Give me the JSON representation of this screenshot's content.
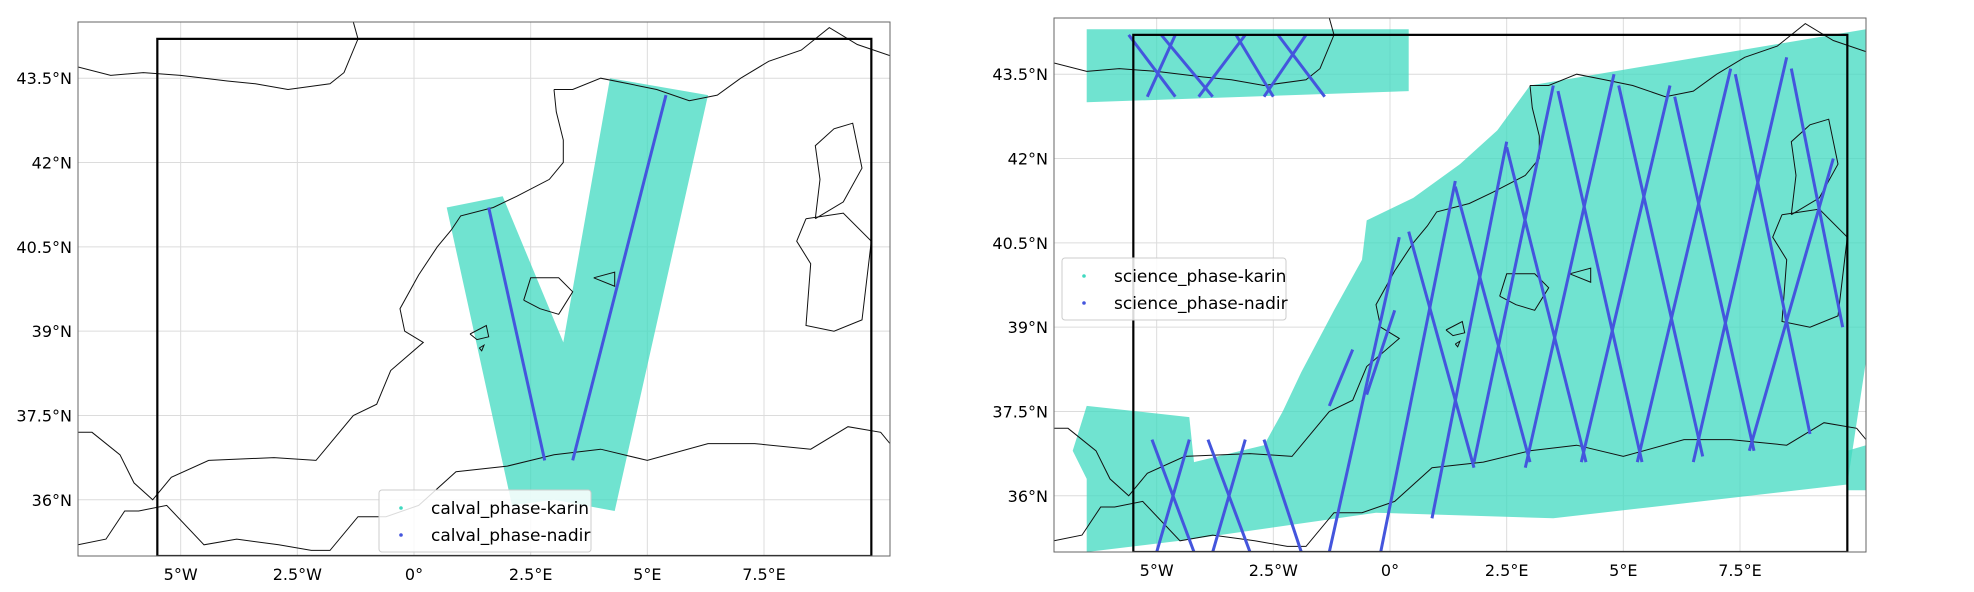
{
  "maps": [
    {
      "id": "calval",
      "lon_range": [
        -7.2,
        10.2
      ],
      "lat_range": [
        35.0,
        44.5
      ],
      "box": {
        "lon": [
          -5.5,
          9.8
        ],
        "lat": [
          35.0,
          44.2
        ]
      },
      "xticks": [
        {
          "value": -5,
          "label": "5°W"
        },
        {
          "value": -2.5,
          "label": "2.5°W"
        },
        {
          "value": 0,
          "label": "0°"
        },
        {
          "value": 2.5,
          "label": "2.5°E"
        },
        {
          "value": 5,
          "label": "5°E"
        },
        {
          "value": 7.5,
          "label": "7.5°E"
        }
      ],
      "yticks": [
        {
          "value": 43.5,
          "label": "43.5°N"
        },
        {
          "value": 42,
          "label": "42°N"
        },
        {
          "value": 40.5,
          "label": "40.5°N"
        },
        {
          "value": 39,
          "label": "39°N"
        },
        {
          "value": 37.5,
          "label": "37.5°N"
        },
        {
          "value": 36,
          "label": "36°N"
        }
      ],
      "karin_polygons": [
        [
          [
            0.7,
            41.2
          ],
          [
            1.9,
            41.4
          ],
          [
            3.2,
            38.8
          ],
          [
            4.2,
            43.5
          ],
          [
            6.3,
            43.2
          ],
          [
            4.3,
            35.8
          ],
          [
            3.0,
            36.0
          ],
          [
            2.1,
            35.9
          ]
        ]
      ],
      "nadir_lines": [
        [
          [
            1.6,
            41.2
          ],
          [
            2.8,
            36.7
          ]
        ],
        [
          [
            3.4,
            36.7
          ],
          [
            5.4,
            43.2
          ]
        ]
      ],
      "legend": {
        "position": "lower-center",
        "entries": [
          {
            "label": "calval_phase-karin",
            "color": "#40d9c0"
          },
          {
            "label": "calval_phase-nadir",
            "color": "#4455dd"
          }
        ]
      }
    },
    {
      "id": "science",
      "lon_range": [
        -7.2,
        10.2
      ],
      "lat_range": [
        35.0,
        44.5
      ],
      "box": {
        "lon": [
          -5.5,
          9.8
        ],
        "lat": [
          35.0,
          44.2
        ]
      },
      "xticks": [
        {
          "value": -5,
          "label": "5°W"
        },
        {
          "value": -2.5,
          "label": "2.5°W"
        },
        {
          "value": 0,
          "label": "0°"
        },
        {
          "value": 2.5,
          "label": "2.5°E"
        },
        {
          "value": 5,
          "label": "5°E"
        },
        {
          "value": 7.5,
          "label": "7.5°E"
        }
      ],
      "yticks": [
        {
          "value": 43.5,
          "label": "43.5°N"
        },
        {
          "value": 42,
          "label": "42°N"
        },
        {
          "value": 40.5,
          "label": "40.5°N"
        },
        {
          "value": 39,
          "label": "39°N"
        },
        {
          "value": 37.5,
          "label": "37.5°N"
        },
        {
          "value": 36,
          "label": "36°N"
        }
      ],
      "karin_polygons": [
        [
          [
            -6.5,
            44.3
          ],
          [
            0.4,
            44.3
          ],
          [
            0.4,
            43.2
          ],
          [
            -6.5,
            43.0
          ]
        ],
        [
          [
            3.0,
            43.3
          ],
          [
            10.2,
            44.3
          ],
          [
            10.2,
            38.4
          ],
          [
            9.8,
            36.2
          ],
          [
            3.5,
            35.6
          ],
          [
            -0.3,
            35.7
          ],
          [
            -4.5,
            35.2
          ],
          [
            -6.5,
            35.0
          ],
          [
            -6.5,
            36.3
          ],
          [
            -6.8,
            36.8
          ],
          [
            -6.5,
            37.6
          ],
          [
            -4.3,
            37.4
          ],
          [
            -4.2,
            36.6
          ],
          [
            -2.7,
            36.9
          ],
          [
            -2.3,
            37.5
          ],
          [
            -1.9,
            38.2
          ],
          [
            -1.2,
            39.3
          ],
          [
            -0.6,
            40.2
          ],
          [
            -0.5,
            40.9
          ],
          [
            0.5,
            41.3
          ],
          [
            1.5,
            41.9
          ],
          [
            2.3,
            42.5
          ],
          [
            3.0,
            43.3
          ]
        ],
        [
          [
            9.8,
            36.8
          ],
          [
            10.2,
            36.9
          ],
          [
            10.2,
            36.1
          ],
          [
            9.8,
            36.1
          ]
        ]
      ],
      "nadir_lines": [
        [
          [
            -5.6,
            44.2
          ],
          [
            -4.6,
            43.1
          ]
        ],
        [
          [
            -4.9,
            44.2
          ],
          [
            -3.8,
            43.1
          ]
        ],
        [
          [
            -3.3,
            44.2
          ],
          [
            -2.5,
            43.1
          ]
        ],
        [
          [
            -2.4,
            44.2
          ],
          [
            -1.4,
            43.1
          ]
        ],
        [
          [
            -4.6,
            44.2
          ],
          [
            -5.2,
            43.1
          ]
        ],
        [
          [
            -3.1,
            44.2
          ],
          [
            -4.1,
            43.1
          ]
        ],
        [
          [
            -1.8,
            44.2
          ],
          [
            -2.7,
            43.1
          ]
        ],
        [
          [
            -5.1,
            37.0
          ],
          [
            -4.2,
            35.0
          ]
        ],
        [
          [
            -3.9,
            37.0
          ],
          [
            -3.0,
            35.0
          ]
        ],
        [
          [
            -2.7,
            37.0
          ],
          [
            -1.9,
            35.0
          ]
        ],
        [
          [
            -4.3,
            37.0
          ],
          [
            -5.0,
            35.0
          ]
        ],
        [
          [
            -3.1,
            37.0
          ],
          [
            -3.8,
            35.0
          ]
        ],
        [
          [
            0.2,
            40.6
          ],
          [
            -1.3,
            35.0
          ]
        ],
        [
          [
            1.4,
            41.6
          ],
          [
            -0.2,
            35.0
          ]
        ],
        [
          [
            2.5,
            42.3
          ],
          [
            0.9,
            35.6
          ]
        ],
        [
          [
            3.5,
            43.3
          ],
          [
            1.8,
            36.6
          ]
        ],
        [
          [
            4.8,
            43.5
          ],
          [
            2.9,
            36.5
          ]
        ],
        [
          [
            6.0,
            43.3
          ],
          [
            4.1,
            36.6
          ]
        ],
        [
          [
            7.3,
            43.6
          ],
          [
            5.3,
            36.6
          ]
        ],
        [
          [
            8.5,
            43.8
          ],
          [
            6.5,
            36.6
          ]
        ],
        [
          [
            9.5,
            42.0
          ],
          [
            7.7,
            36.8
          ]
        ],
        [
          [
            0.4,
            40.7
          ],
          [
            1.8,
            36.5
          ]
        ],
        [
          [
            1.4,
            41.5
          ],
          [
            3.0,
            36.6
          ]
        ],
        [
          [
            2.5,
            42.2
          ],
          [
            4.2,
            36.6
          ]
        ],
        [
          [
            3.6,
            43.2
          ],
          [
            5.4,
            36.6
          ]
        ],
        [
          [
            4.9,
            43.3
          ],
          [
            6.7,
            36.7
          ]
        ],
        [
          [
            6.1,
            43.1
          ],
          [
            7.8,
            36.8
          ]
        ],
        [
          [
            7.4,
            43.5
          ],
          [
            9.0,
            37.1
          ]
        ],
        [
          [
            8.6,
            43.6
          ],
          [
            9.7,
            39.0
          ]
        ],
        [
          [
            -0.8,
            38.6
          ],
          [
            -1.3,
            37.6
          ]
        ],
        [
          [
            0.1,
            39.3
          ],
          [
            -0.5,
            37.8
          ]
        ]
      ],
      "legend": {
        "position": "center-left",
        "entries": [
          {
            "label": "science_phase-karin",
            "color": "#40d9c0"
          },
          {
            "label": "science_phase-nadir",
            "color": "#4455dd"
          }
        ]
      }
    }
  ],
  "coast": {
    "segments": [
      [
        [
          -7.2,
          43.7
        ],
        [
          -6.5,
          43.55
        ],
        [
          -5.8,
          43.6
        ],
        [
          -5.0,
          43.55
        ],
        [
          -4.0,
          43.45
        ],
        [
          -3.4,
          43.4
        ],
        [
          -2.7,
          43.3
        ],
        [
          -1.8,
          43.4
        ],
        [
          -1.5,
          43.6
        ],
        [
          -1.2,
          44.2
        ],
        [
          -1.3,
          44.5
        ]
      ],
      [
        [
          3.0,
          43.3
        ],
        [
          3.4,
          43.3
        ],
        [
          4.0,
          43.5
        ],
        [
          4.6,
          43.4
        ],
        [
          5.2,
          43.3
        ],
        [
          5.9,
          43.1
        ],
        [
          6.5,
          43.2
        ],
        [
          7.0,
          43.5
        ],
        [
          7.6,
          43.8
        ],
        [
          8.3,
          44.0
        ],
        [
          8.9,
          44.4
        ],
        [
          9.5,
          44.1
        ],
        [
          10.2,
          43.9
        ]
      ],
      [
        [
          3.0,
          43.3
        ],
        [
          3.05,
          42.9
        ],
        [
          3.2,
          42.4
        ],
        [
          3.2,
          42.0
        ],
        [
          2.9,
          41.7
        ],
        [
          2.2,
          41.4
        ],
        [
          1.7,
          41.2
        ],
        [
          1.0,
          41.05
        ],
        [
          0.8,
          40.8
        ],
        [
          0.5,
          40.5
        ],
        [
          0.1,
          40.0
        ],
        [
          -0.3,
          39.4
        ],
        [
          -0.2,
          39.0
        ],
        [
          0.2,
          38.8
        ],
        [
          -0.5,
          38.3
        ],
        [
          -0.8,
          37.7
        ],
        [
          -1.3,
          37.5
        ],
        [
          -1.8,
          37.0
        ],
        [
          -2.1,
          36.7
        ],
        [
          -3.0,
          36.75
        ],
        [
          -4.4,
          36.7
        ],
        [
          -5.2,
          36.4
        ],
        [
          -5.6,
          36.0
        ],
        [
          -6.0,
          36.3
        ],
        [
          -6.3,
          36.8
        ],
        [
          -6.9,
          37.2
        ],
        [
          -7.2,
          37.2
        ]
      ],
      [
        [
          -7.2,
          35.2
        ],
        [
          -6.6,
          35.3
        ],
        [
          -6.2,
          35.8
        ],
        [
          -5.9,
          35.8
        ],
        [
          -5.3,
          35.9
        ],
        [
          -4.5,
          35.2
        ],
        [
          -3.8,
          35.3
        ],
        [
          -2.9,
          35.2
        ],
        [
          -2.2,
          35.1
        ],
        [
          -1.8,
          35.1
        ],
        [
          -1.2,
          35.7
        ],
        [
          -0.6,
          35.7
        ],
        [
          0.1,
          35.9
        ],
        [
          0.9,
          36.5
        ],
        [
          2.0,
          36.6
        ],
        [
          3.0,
          36.8
        ],
        [
          4.0,
          36.9
        ],
        [
          5.0,
          36.7
        ],
        [
          6.3,
          37.0
        ],
        [
          7.3,
          37.0
        ],
        [
          8.5,
          36.9
        ],
        [
          9.3,
          37.3
        ],
        [
          10.0,
          37.2
        ],
        [
          10.2,
          37.0
        ]
      ],
      [
        [
          -5.9,
          35.0
        ],
        [
          -6.4,
          34.0
        ]
      ],
      [
        [
          -1.3,
          44.6
        ],
        [
          -1.1,
          44.9
        ]
      ]
    ],
    "islands": [
      [
        [
          2.35,
          39.55
        ],
        [
          2.5,
          39.95
        ],
        [
          3.1,
          39.95
        ],
        [
          3.4,
          39.7
        ],
        [
          3.1,
          39.3
        ],
        [
          2.7,
          39.4
        ],
        [
          2.35,
          39.55
        ]
      ],
      [
        [
          3.85,
          39.95
        ],
        [
          4.3,
          40.05
        ],
        [
          4.3,
          39.8
        ],
        [
          3.85,
          39.95
        ]
      ],
      [
        [
          1.2,
          38.95
        ],
        [
          1.55,
          39.1
        ],
        [
          1.6,
          38.9
        ],
        [
          1.35,
          38.85
        ],
        [
          1.2,
          38.95
        ]
      ],
      [
        [
          1.4,
          38.7
        ],
        [
          1.5,
          38.75
        ],
        [
          1.45,
          38.65
        ],
        [
          1.4,
          38.7
        ]
      ],
      [
        [
          8.6,
          41.0
        ],
        [
          9.2,
          41.3
        ],
        [
          9.6,
          41.9
        ],
        [
          9.4,
          42.7
        ],
        [
          9.0,
          42.6
        ],
        [
          8.6,
          42.3
        ],
        [
          8.7,
          41.7
        ],
        [
          8.6,
          41.0
        ]
      ],
      [
        [
          8.4,
          41.0
        ],
        [
          9.2,
          41.1
        ],
        [
          9.8,
          40.6
        ],
        [
          9.6,
          39.2
        ],
        [
          9.0,
          39.0
        ],
        [
          8.4,
          39.1
        ],
        [
          8.5,
          40.2
        ],
        [
          8.2,
          40.6
        ],
        [
          8.4,
          41.0
        ]
      ],
      [
        [
          10.2,
          42.8
        ],
        [
          10.4,
          42.8
        ]
      ]
    ]
  }
}
